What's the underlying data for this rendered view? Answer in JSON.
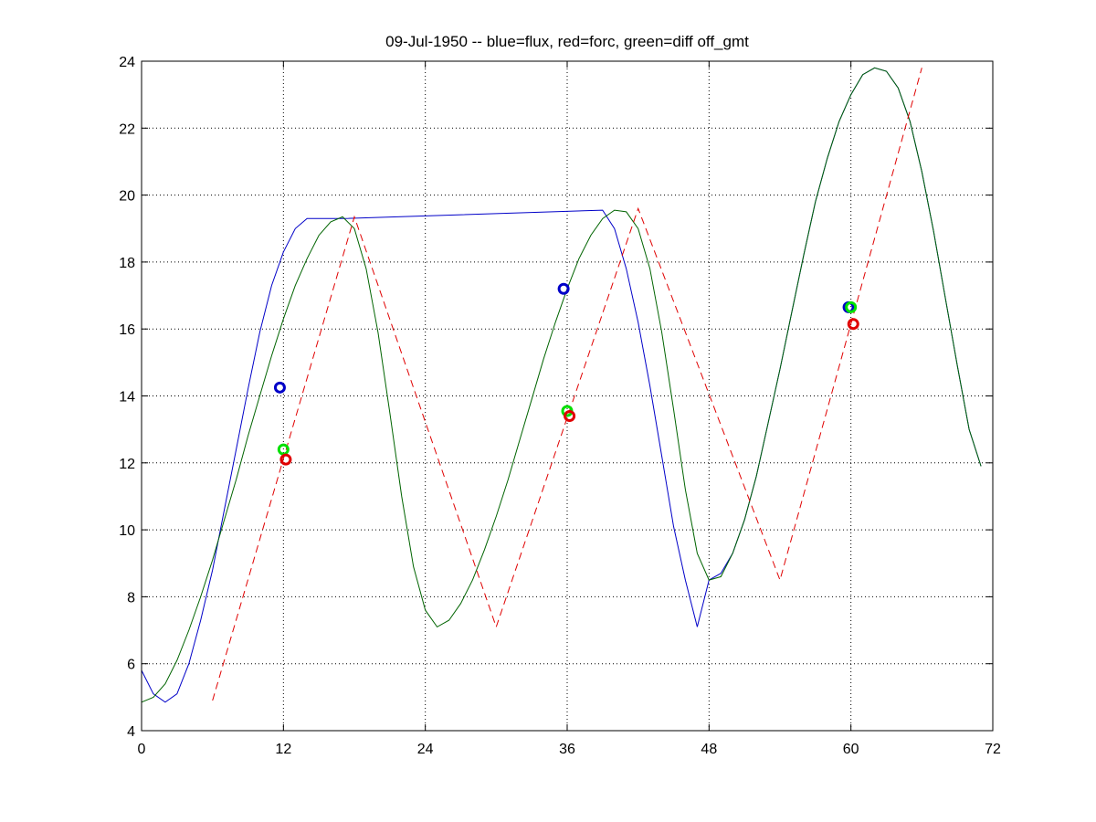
{
  "chart_data": {
    "type": "line",
    "title": "09-Jul-1950 -- blue=flux, red=forc, green=diff off_gmt",
    "xlabel": "",
    "ylabel": "",
    "xlim": [
      0,
      72
    ],
    "ylim": [
      4,
      24
    ],
    "xticks": [
      0,
      12,
      24,
      36,
      48,
      60,
      72
    ],
    "yticks": [
      4,
      6,
      8,
      10,
      12,
      14,
      16,
      18,
      20,
      22,
      24
    ],
    "grid": true,
    "colors": {
      "blue": "#0000c8",
      "green": "#006400",
      "red": "#e00000",
      "marker_green": "#00e000"
    },
    "series": [
      {
        "color": "blue",
        "style": "solid",
        "x": [
          0,
          1,
          2,
          3,
          4,
          5,
          6,
          7,
          8,
          9,
          10,
          11,
          12,
          13,
          14,
          17,
          39,
          40,
          41,
          42,
          43,
          44,
          45,
          46,
          47,
          48,
          49,
          50,
          51,
          52,
          53,
          54,
          55,
          56,
          57,
          58,
          59,
          60,
          61,
          62,
          63,
          64,
          65,
          66,
          67,
          68,
          69,
          70,
          71
        ],
        "y": [
          5.8,
          5.1,
          4.85,
          5.1,
          6.0,
          7.3,
          8.8,
          10.6,
          12.4,
          14.2,
          15.9,
          17.3,
          18.3,
          19.0,
          19.3,
          19.3,
          19.55,
          19.0,
          17.8,
          16.2,
          14.3,
          12.2,
          10.1,
          8.5,
          7.1,
          8.5,
          8.7,
          9.3,
          10.3,
          11.6,
          13.2,
          14.8,
          16.5,
          18.2,
          19.8,
          21.1,
          22.2,
          23.0,
          23.6,
          23.8,
          23.7,
          23.2,
          22.2,
          20.7,
          18.9,
          16.9,
          14.9,
          13.0,
          11.9
        ]
      },
      {
        "color": "green",
        "style": "solid",
        "x": [
          0,
          1,
          2,
          3,
          4,
          5,
          6,
          7,
          8,
          9,
          10,
          11,
          12,
          13,
          14,
          15,
          16,
          17,
          18,
          19,
          20,
          21,
          22,
          23,
          24,
          25,
          26,
          27,
          28,
          29,
          30,
          31,
          32,
          33,
          34,
          35,
          36,
          37,
          38,
          39,
          40,
          41,
          42,
          43,
          44,
          45,
          46,
          47,
          48,
          49,
          50,
          51,
          52,
          53,
          54,
          55,
          56,
          57,
          58,
          59,
          60,
          61,
          62,
          63,
          64,
          65,
          66,
          67,
          68,
          69,
          70,
          71
        ],
        "y": [
          4.85,
          5.0,
          5.4,
          6.1,
          7.0,
          8.0,
          9.1,
          10.3,
          11.5,
          12.8,
          14.0,
          15.2,
          16.3,
          17.3,
          18.1,
          18.8,
          19.2,
          19.35,
          19.0,
          17.8,
          15.9,
          13.5,
          11.0,
          8.9,
          7.6,
          7.1,
          7.3,
          7.8,
          8.5,
          9.4,
          10.4,
          11.5,
          12.7,
          13.9,
          15.1,
          16.2,
          17.2,
          18.1,
          18.8,
          19.3,
          19.55,
          19.5,
          19.0,
          17.8,
          15.9,
          13.6,
          11.2,
          9.3,
          8.5,
          8.6,
          9.3,
          10.3,
          11.6,
          13.2,
          14.8,
          16.5,
          18.2,
          19.8,
          21.1,
          22.2,
          23.0,
          23.6,
          23.8,
          23.7,
          23.2,
          22.2,
          20.7,
          18.9,
          16.9,
          14.9,
          13.0,
          11.9
        ]
      },
      {
        "color": "red",
        "style": "dashed",
        "x": [
          6,
          18,
          30,
          42,
          54,
          66
        ],
        "y": [
          4.9,
          19.35,
          7.1,
          19.6,
          8.5,
          23.8
        ]
      }
    ],
    "markers": [
      {
        "color": "blue",
        "x": 11.7,
        "y": 14.25
      },
      {
        "color": "marker_green",
        "x": 12.0,
        "y": 12.4
      },
      {
        "color": "red",
        "x": 12.2,
        "y": 12.1
      },
      {
        "color": "blue",
        "x": 35.7,
        "y": 17.2
      },
      {
        "color": "marker_green",
        "x": 36.0,
        "y": 13.55
      },
      {
        "color": "red",
        "x": 36.2,
        "y": 13.4
      },
      {
        "color": "blue",
        "x": 59.8,
        "y": 16.65
      },
      {
        "color": "marker_green",
        "x": 60.0,
        "y": 16.65
      },
      {
        "color": "red",
        "x": 60.2,
        "y": 16.15
      }
    ]
  }
}
